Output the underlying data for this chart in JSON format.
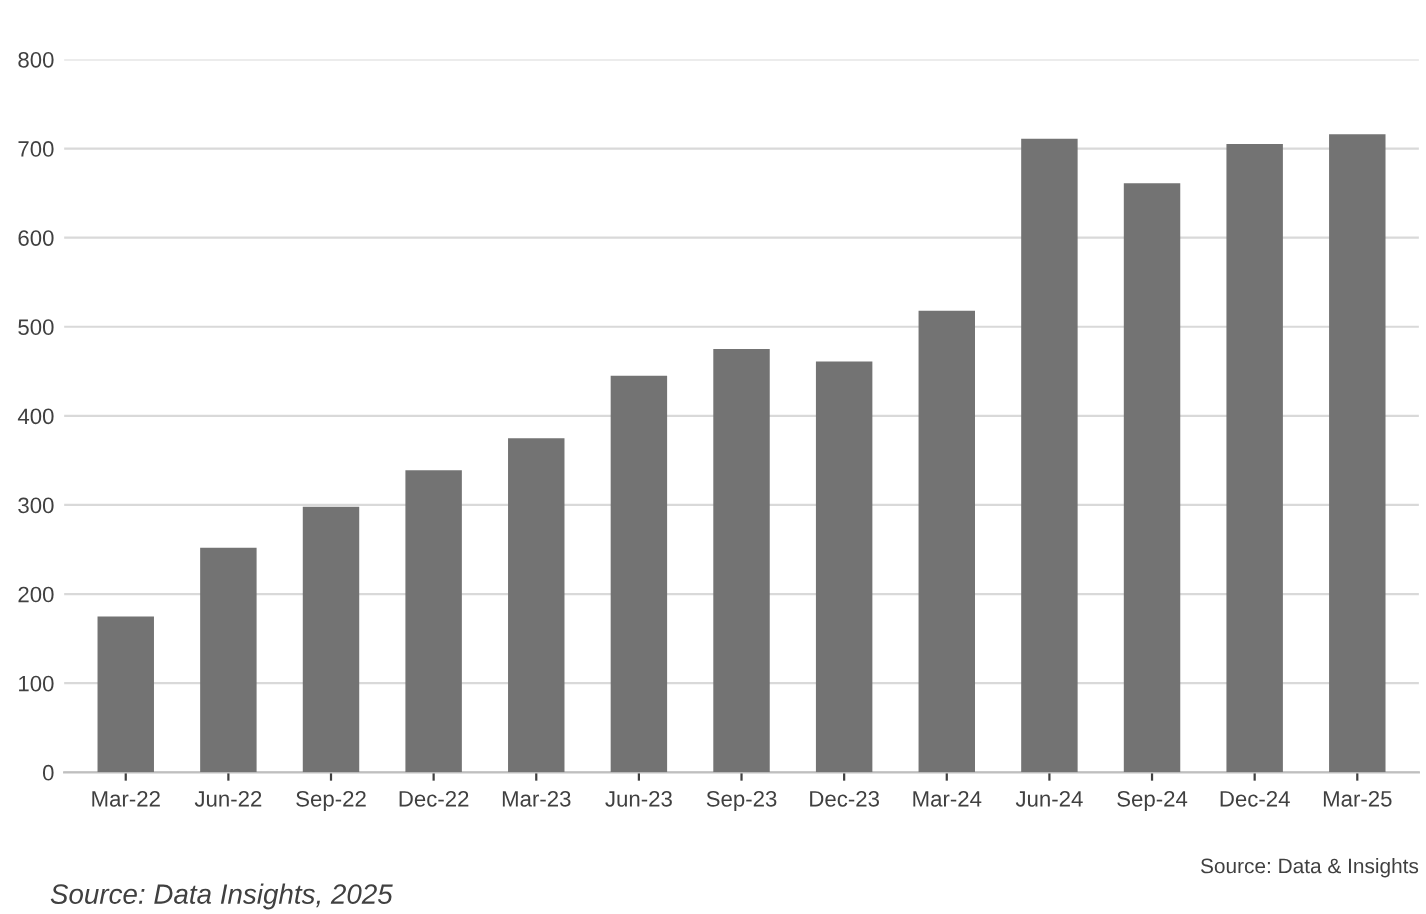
{
  "chart_data": {
    "type": "bar",
    "categories": [
      "Mar-22",
      "Jun-22",
      "Sep-22",
      "Dec-22",
      "Mar-23",
      "Jun-23",
      "Sep-23",
      "Dec-23",
      "Mar-24",
      "Jun-24",
      "Sep-24",
      "Dec-24",
      "Mar-25"
    ],
    "values": [
      175,
      252,
      298,
      339,
      375,
      445,
      475,
      461,
      518,
      711,
      661,
      705,
      716
    ],
    "color": "#737373",
    "ylim": [
      0,
      800
    ],
    "yticks": [
      0,
      100,
      200,
      300,
      400,
      500,
      600,
      700,
      800
    ],
    "grid": "y",
    "annotations": [
      "Source: Data Insights, 2025",
      "Source: Data & Insights"
    ]
  }
}
